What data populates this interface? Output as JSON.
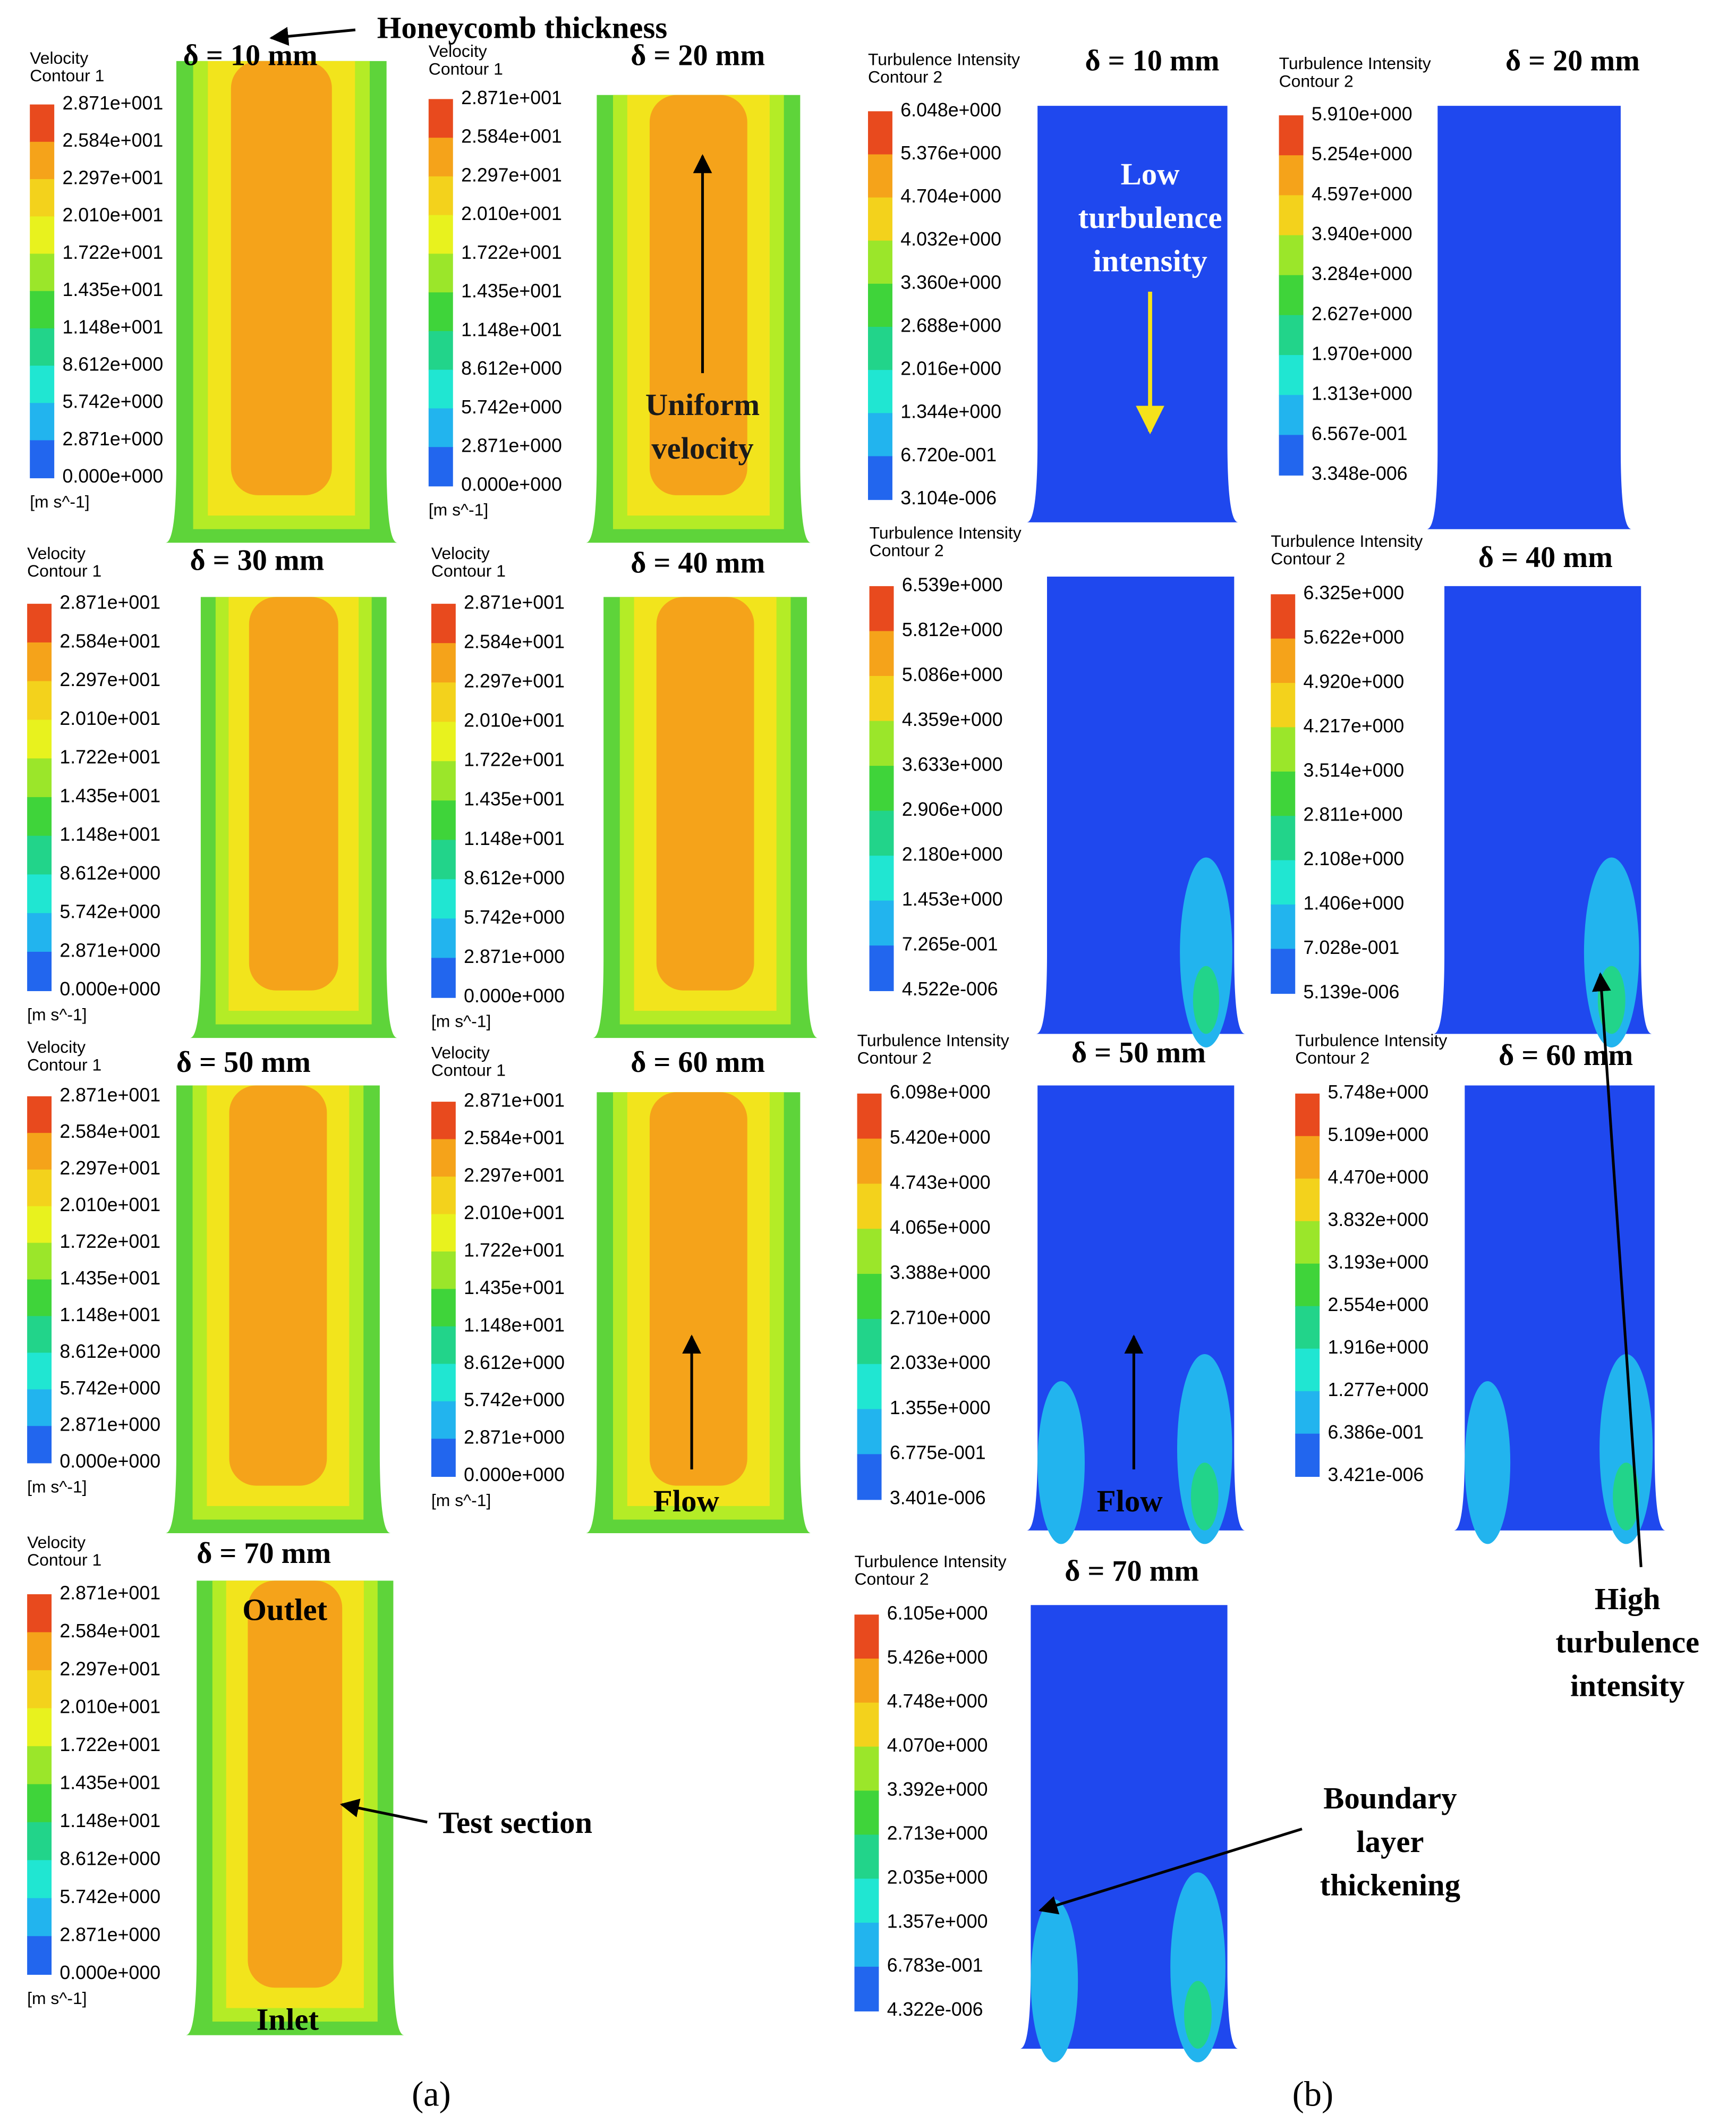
{
  "velocity_panels": [
    {
      "title": "Velocity",
      "subtitle": "Contour 1",
      "heading": "δ = 10 mm",
      "unit": "[m s^-1]",
      "levels": [
        "2.871e+001",
        "2.584e+001",
        "2.297e+001",
        "2.010e+001",
        "1.722e+001",
        "1.435e+001",
        "1.148e+001",
        "8.612e+000",
        "5.742e+000",
        "2.871e+000",
        "0.000e+000"
      ]
    },
    {
      "title": "Velocity",
      "subtitle": "Contour 1",
      "heading": "δ = 20 mm",
      "unit": "[m s^-1]",
      "levels": [
        "2.871e+001",
        "2.584e+001",
        "2.297e+001",
        "2.010e+001",
        "1.722e+001",
        "1.435e+001",
        "1.148e+001",
        "8.612e+000",
        "5.742e+000",
        "2.871e+000",
        "0.000e+000"
      ]
    },
    {
      "title": "Velocity",
      "subtitle": "Contour 1",
      "heading": "δ = 30 mm",
      "unit": "[m s^-1]",
      "levels": [
        "2.871e+001",
        "2.584e+001",
        "2.297e+001",
        "2.010e+001",
        "1.722e+001",
        "1.435e+001",
        "1.148e+001",
        "8.612e+000",
        "5.742e+000",
        "2.871e+000",
        "0.000e+000"
      ]
    },
    {
      "title": "Velocity",
      "subtitle": "Contour 1",
      "heading": "δ = 40 mm",
      "unit": "[m s^-1]",
      "levels": [
        "2.871e+001",
        "2.584e+001",
        "2.297e+001",
        "2.010e+001",
        "1.722e+001",
        "1.435e+001",
        "1.148e+001",
        "8.612e+000",
        "5.742e+000",
        "2.871e+000",
        "0.000e+000"
      ]
    },
    {
      "title": "Velocity",
      "subtitle": "Contour 1",
      "heading": "δ = 50 mm",
      "unit": "[m s^-1]",
      "levels": [
        "2.871e+001",
        "2.584e+001",
        "2.297e+001",
        "2.010e+001",
        "1.722e+001",
        "1.435e+001",
        "1.148e+001",
        "8.612e+000",
        "5.742e+000",
        "2.871e+000",
        "0.000e+000"
      ]
    },
    {
      "title": "Velocity",
      "subtitle": "Contour 1",
      "heading": "δ = 60 mm",
      "unit": "[m s^-1]",
      "levels": [
        "2.871e+001",
        "2.584e+001",
        "2.297e+001",
        "2.010e+001",
        "1.722e+001",
        "1.435e+001",
        "1.148e+001",
        "8.612e+000",
        "5.742e+000",
        "2.871e+000",
        "0.000e+000"
      ]
    },
    {
      "title": "Velocity",
      "subtitle": "Contour 1",
      "heading": "δ = 70 mm",
      "unit": "[m s^-1]",
      "levels": [
        "2.871e+001",
        "2.584e+001",
        "2.297e+001",
        "2.010e+001",
        "1.722e+001",
        "1.435e+001",
        "1.148e+001",
        "8.612e+000",
        "5.742e+000",
        "2.871e+000",
        "0.000e+000"
      ]
    }
  ],
  "turbulence_panels": [
    {
      "title": "Turbulence Intensity",
      "subtitle": "Contour 2",
      "heading": "δ = 10 mm",
      "levels": [
        "6.048e+000",
        "5.376e+000",
        "4.704e+000",
        "4.032e+000",
        "3.360e+000",
        "2.688e+000",
        "2.016e+000",
        "1.344e+000",
        "6.720e-001",
        "3.104e-006"
      ]
    },
    {
      "title": "Turbulence Intensity",
      "subtitle": "Contour 2",
      "heading": "δ = 20 mm",
      "levels": [
        "5.910e+000",
        "5.254e+000",
        "4.597e+000",
        "3.940e+000",
        "3.284e+000",
        "2.627e+000",
        "1.970e+000",
        "1.313e+000",
        "6.567e-001",
        "3.348e-006"
      ]
    },
    {
      "title": "Turbulence Intensity",
      "subtitle": "Contour 2",
      "levels": [
        "6.539e+000",
        "5.812e+000",
        "5.086e+000",
        "4.359e+000",
        "3.633e+000",
        "2.906e+000",
        "2.180e+000",
        "1.453e+000",
        "7.265e-001",
        "4.522e-006"
      ]
    },
    {
      "title": "Turbulence Intensity",
      "subtitle": "Contour 2",
      "heading": "δ = 40 mm",
      "levels": [
        "6.325e+000",
        "5.622e+000",
        "4.920e+000",
        "4.217e+000",
        "3.514e+000",
        "2.811e+000",
        "2.108e+000",
        "1.406e+000",
        "7.028e-001",
        "5.139e-006"
      ]
    },
    {
      "title": "Turbulence Intensity",
      "subtitle": "Contour 2",
      "heading": "δ = 50 mm",
      "levels": [
        "6.098e+000",
        "5.420e+000",
        "4.743e+000",
        "4.065e+000",
        "3.388e+000",
        "2.710e+000",
        "2.033e+000",
        "1.355e+000",
        "6.775e-001",
        "3.401e-006"
      ]
    },
    {
      "title": "Turbulence Intensity",
      "subtitle": "Contour 2",
      "heading": "δ = 60 mm",
      "levels": [
        "5.748e+000",
        "5.109e+000",
        "4.470e+000",
        "3.832e+000",
        "3.193e+000",
        "2.554e+000",
        "1.916e+000",
        "1.277e+000",
        "6.386e-001",
        "3.421e-006"
      ]
    },
    {
      "title": "Turbulence Intensity",
      "subtitle": "Contour 2",
      "heading": "δ = 70 mm",
      "levels": [
        "6.105e+000",
        "5.426e+000",
        "4.748e+000",
        "4.070e+000",
        "3.392e+000",
        "2.713e+000",
        "2.035e+000",
        "1.357e+000",
        "6.783e-001",
        "4.322e-006"
      ]
    }
  ],
  "annotations": {
    "honeycomb": "Honeycomb thickness",
    "uniform_velocity": [
      "Uniform",
      "velocity"
    ],
    "low_turbulence": [
      "Low",
      "turbulence",
      "intensity"
    ],
    "flow_a": "Flow",
    "flow_b": "Flow",
    "outlet": "Outlet",
    "inlet": "Inlet",
    "test_section": "Test section",
    "boundary_layer": [
      "Boundary",
      "layer",
      "thickening"
    ],
    "high_turbulence": [
      "High",
      "turbulence",
      "intensity"
    ]
  },
  "label_a": "(a)",
  "label_b": "(b)"
}
